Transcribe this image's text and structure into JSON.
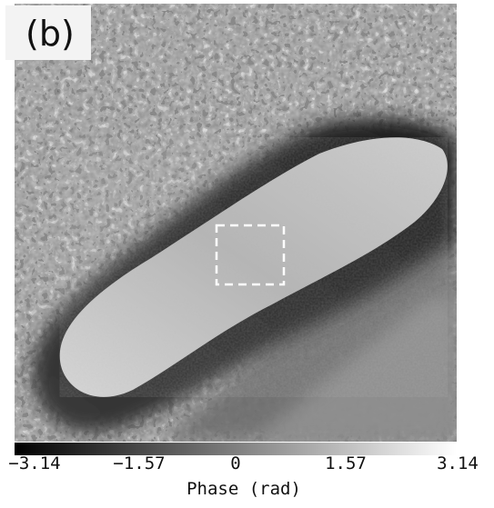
{
  "panel": {
    "label": "(b)"
  },
  "image": {
    "description_icon": "phase-map-image"
  },
  "colorbar": {
    "ticks": [
      "−3.14",
      "−1.57",
      "0",
      "1.57",
      "3.14"
    ],
    "label": "Phase (rad)",
    "colors": {
      "low": "#000000",
      "high": "#ffffff"
    }
  }
}
